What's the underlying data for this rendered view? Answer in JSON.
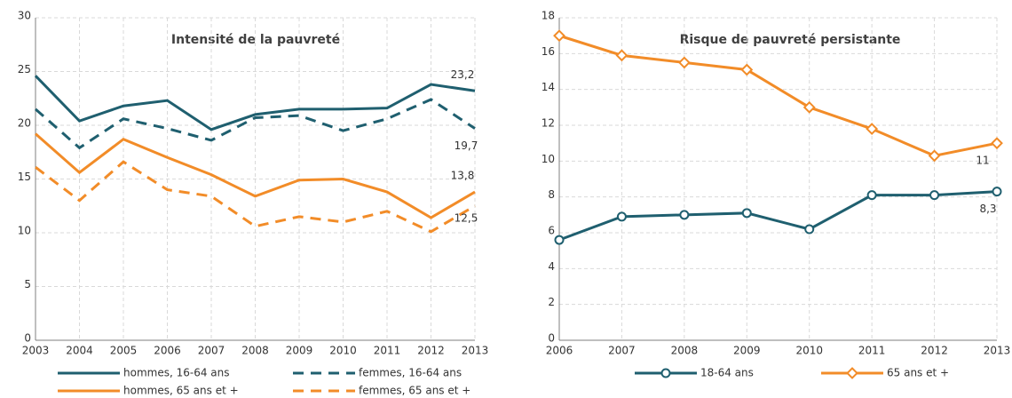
{
  "chart_data": [
    {
      "type": "line",
      "title": "Intensité de la pauvreté",
      "x": [
        2003,
        2004,
        2005,
        2006,
        2007,
        2008,
        2009,
        2010,
        2011,
        2012,
        2013
      ],
      "xlim": [
        2003,
        2013
      ],
      "xticks": [
        2003,
        2004,
        2005,
        2006,
        2007,
        2008,
        2009,
        2010,
        2011,
        2012,
        2013
      ],
      "ylim": [
        0,
        30
      ],
      "yticks": [
        0,
        5,
        10,
        15,
        20,
        25,
        30
      ],
      "grid": true,
      "series": [
        {
          "name": "hommes, 16-64 ans",
          "color": "#1f5f6f",
          "dash": false,
          "values": [
            24.6,
            20.4,
            21.8,
            22.3,
            19.6,
            21.0,
            21.5,
            21.5,
            21.6,
            23.8,
            23.2
          ],
          "value_labels": [
            null,
            null,
            null,
            null,
            null,
            null,
            null,
            null,
            null,
            null,
            "23,2"
          ]
        },
        {
          "name": "femmes, 16-64 ans",
          "color": "#1f5f6f",
          "dash": true,
          "values": [
            21.5,
            17.9,
            20.6,
            19.7,
            18.6,
            20.7,
            20.9,
            19.5,
            20.6,
            22.4,
            19.7
          ],
          "value_labels": [
            null,
            null,
            null,
            null,
            null,
            null,
            null,
            null,
            null,
            null,
            "19,7"
          ]
        },
        {
          "name": "hommes, 65 ans et +",
          "color": "#f28c28",
          "dash": false,
          "values": [
            19.2,
            15.6,
            18.7,
            17.0,
            15.4,
            13.4,
            14.9,
            15.0,
            13.8,
            11.4,
            13.8
          ],
          "value_labels": [
            null,
            null,
            null,
            null,
            null,
            null,
            null,
            null,
            null,
            null,
            "13,8"
          ]
        },
        {
          "name": "femmes, 65 ans et +",
          "color": "#f28c28",
          "dash": true,
          "values": [
            16.1,
            13.0,
            16.6,
            14.0,
            13.4,
            10.6,
            11.5,
            11.0,
            12.0,
            10.1,
            12.5
          ],
          "value_labels": [
            null,
            null,
            null,
            null,
            null,
            null,
            null,
            null,
            null,
            null,
            "12,5"
          ]
        }
      ]
    },
    {
      "type": "line",
      "title": "Risque de pauvreté persistante",
      "x": [
        2006,
        2007,
        2008,
        2009,
        2010,
        2011,
        2012,
        2013
      ],
      "xlim": [
        2006,
        2013
      ],
      "xticks": [
        2006,
        2007,
        2008,
        2009,
        2010,
        2011,
        2012,
        2013
      ],
      "ylim": [
        0,
        18
      ],
      "yticks": [
        0,
        2,
        4,
        6,
        8,
        10,
        12,
        14,
        16,
        18
      ],
      "grid": true,
      "series": [
        {
          "name": "18-64 ans",
          "color": "#1f5f6f",
          "marker": "circle",
          "values": [
            5.6,
            6.9,
            7.0,
            7.1,
            6.2,
            8.1,
            8.1,
            8.3
          ],
          "value_labels": [
            null,
            null,
            null,
            null,
            null,
            null,
            null,
            "8,3"
          ]
        },
        {
          "name": "65 ans et +",
          "color": "#f28c28",
          "marker": "diamond",
          "values": [
            17.0,
            15.9,
            15.5,
            15.1,
            13.0,
            11.8,
            10.3,
            11.0
          ],
          "value_labels": [
            null,
            null,
            null,
            null,
            null,
            null,
            null,
            "11"
          ]
        }
      ]
    }
  ]
}
